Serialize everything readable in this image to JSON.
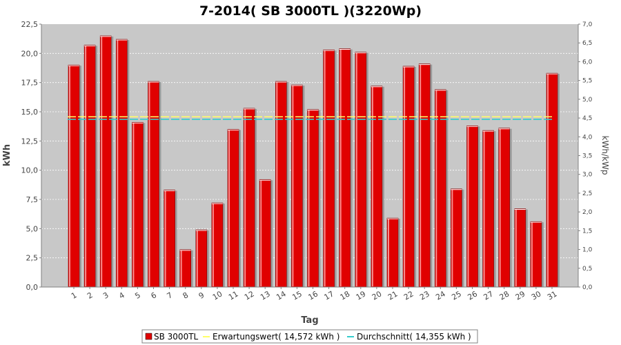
{
  "chart_data": {
    "type": "bar",
    "title": "7-2014( SB 3000TL )(3220Wp)",
    "xlabel": "Tag",
    "ylabel": "kWh",
    "ylabel_right": "kWh/kWp",
    "ylim": [
      0,
      22.5
    ],
    "ylim_right": [
      0,
      7.0
    ],
    "yticks": [
      "0,0",
      "2,5",
      "5,0",
      "7,5",
      "10,0",
      "12,5",
      "15,0",
      "17,5",
      "20,0",
      "22,5"
    ],
    "yticks_right": [
      "0,0",
      "0,5",
      "1,0",
      "1,5",
      "2,0",
      "2,5",
      "3,0",
      "3,5",
      "4,0",
      "4,5",
      "5,0",
      "5,5",
      "6,0",
      "6,5",
      "7,0"
    ],
    "categories": [
      "1",
      "2",
      "3",
      "4",
      "5",
      "6",
      "7",
      "8",
      "9",
      "10",
      "11",
      "12",
      "13",
      "14",
      "15",
      "16",
      "17",
      "18",
      "19",
      "20",
      "21",
      "22",
      "23",
      "24",
      "25",
      "26",
      "27",
      "28",
      "29",
      "30",
      "31"
    ],
    "series": [
      {
        "name": "SB 3000TL",
        "color": "#e00000",
        "values": [
          19.0,
          20.7,
          21.5,
          21.2,
          14.1,
          17.6,
          8.3,
          3.2,
          4.9,
          7.2,
          13.5,
          15.3,
          9.2,
          17.6,
          17.3,
          15.2,
          20.3,
          20.4,
          20.1,
          17.2,
          5.9,
          18.9,
          19.1,
          16.9,
          8.4,
          13.8,
          13.4,
          13.6,
          6.7,
          5.6,
          18.3
        ]
      }
    ],
    "reference_lines": [
      {
        "name": "Erwartungswert",
        "value": 14.572,
        "color": "#ffff66",
        "legend": "Erwartungswert( 14,572 kWh )"
      },
      {
        "name": "Durchschnitt",
        "value": 14.355,
        "color": "#33cccc",
        "legend": "Durchschnitt( 14,355 kWh )"
      }
    ],
    "legend": [
      "SB 3000TL",
      "Erwartungswert( 14,572 kWh )",
      "Durchschnitt( 14,355 kWh )"
    ],
    "legend_position": "bottom",
    "grid": true
  }
}
